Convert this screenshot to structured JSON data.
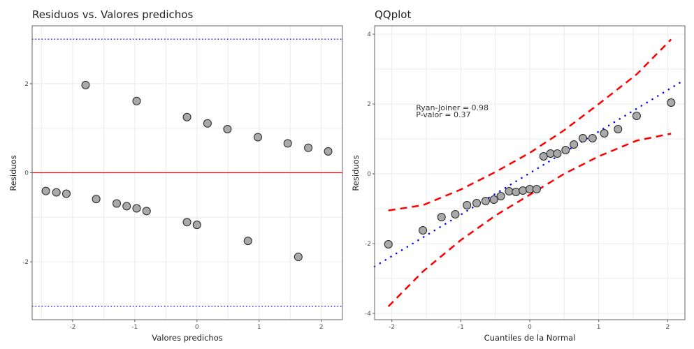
{
  "chart_data": [
    {
      "type": "scatter",
      "title": "Residuos  vs. Valores predichos",
      "xlabel": "Valores predichos",
      "ylabel": "Residuos",
      "xlim": [
        -2.65,
        2.34
      ],
      "ylim": [
        -3.3,
        3.3
      ],
      "xticks": [
        -2,
        -1,
        0,
        1,
        2
      ],
      "yticks": [
        -2,
        0,
        2
      ],
      "grid": true,
      "hlines": [
        {
          "y": 0,
          "color": "#ff0000",
          "style": "solid"
        },
        {
          "y": 3,
          "color": "#0000ff",
          "style": "dotted"
        },
        {
          "y": -3,
          "color": "#0000ff",
          "style": "dotted"
        }
      ],
      "points": {
        "x": [
          -2.43,
          -2.26,
          -2.1,
          -1.79,
          -1.62,
          -1.29,
          -1.13,
          -0.97,
          -0.97,
          -0.81,
          -0.16,
          -0.16,
          0.0,
          0.17,
          0.49,
          0.82,
          0.98,
          1.46,
          1.63,
          1.79,
          2.11
        ],
        "y": [
          -0.41,
          -0.44,
          -0.47,
          1.97,
          -0.59,
          -0.69,
          -0.75,
          1.61,
          -0.8,
          -0.86,
          1.25,
          -1.11,
          -1.17,
          1.11,
          0.98,
          -1.53,
          0.8,
          0.66,
          -1.89,
          0.56,
          0.48
        ]
      }
    },
    {
      "type": "scatter",
      "title": "QQplot",
      "xlabel": "Cuantiles de la Normal",
      "ylabel": "Residuos",
      "xlim": [
        -2.25,
        2.25
      ],
      "ylim": [
        -4.18,
        4.24
      ],
      "xticks": [
        -2,
        -1,
        0,
        1,
        2
      ],
      "yticks": [
        -4,
        -2,
        0,
        2,
        4
      ],
      "grid": true,
      "annotation": [
        "Ryan-Joiner = 0.98",
        "P-valor = 0.37"
      ],
      "annotation_pos": [
        -1.65,
        1.82
      ],
      "reference_line": {
        "intercept": 0.02,
        "slope": 1.19,
        "color": "#0000ff",
        "style": "dotted"
      },
      "band_x": [
        -2.05,
        -1.55,
        -1.0,
        -0.5,
        0,
        0.5,
        1.0,
        1.55,
        2.05
      ],
      "band_upper": [
        -1.05,
        -0.9,
        -0.45,
        0.05,
        0.6,
        1.25,
        2.0,
        2.85,
        3.85
      ],
      "band_lower": [
        -3.8,
        -2.8,
        -1.9,
        -1.2,
        -0.6,
        0.0,
        0.5,
        0.95,
        1.15
      ],
      "band_color": "#ff0000",
      "points": {
        "x": [
          -2.05,
          -1.55,
          -1.28,
          -1.08,
          -0.91,
          -0.77,
          -0.64,
          -0.52,
          -0.42,
          -0.3,
          -0.2,
          -0.1,
          0.0,
          0.1,
          0.2,
          0.3,
          0.4,
          0.52,
          0.64,
          0.77,
          0.91,
          1.08,
          1.28,
          1.55,
          2.05
        ],
        "y": [
          -2.02,
          -1.62,
          -1.24,
          -1.16,
          -0.9,
          -0.84,
          -0.78,
          -0.74,
          -0.64,
          -0.5,
          -0.52,
          -0.48,
          -0.44,
          -0.44,
          0.5,
          0.58,
          0.58,
          0.68,
          0.84,
          1.02,
          1.02,
          1.16,
          1.28,
          1.66,
          2.04
        ]
      }
    }
  ]
}
